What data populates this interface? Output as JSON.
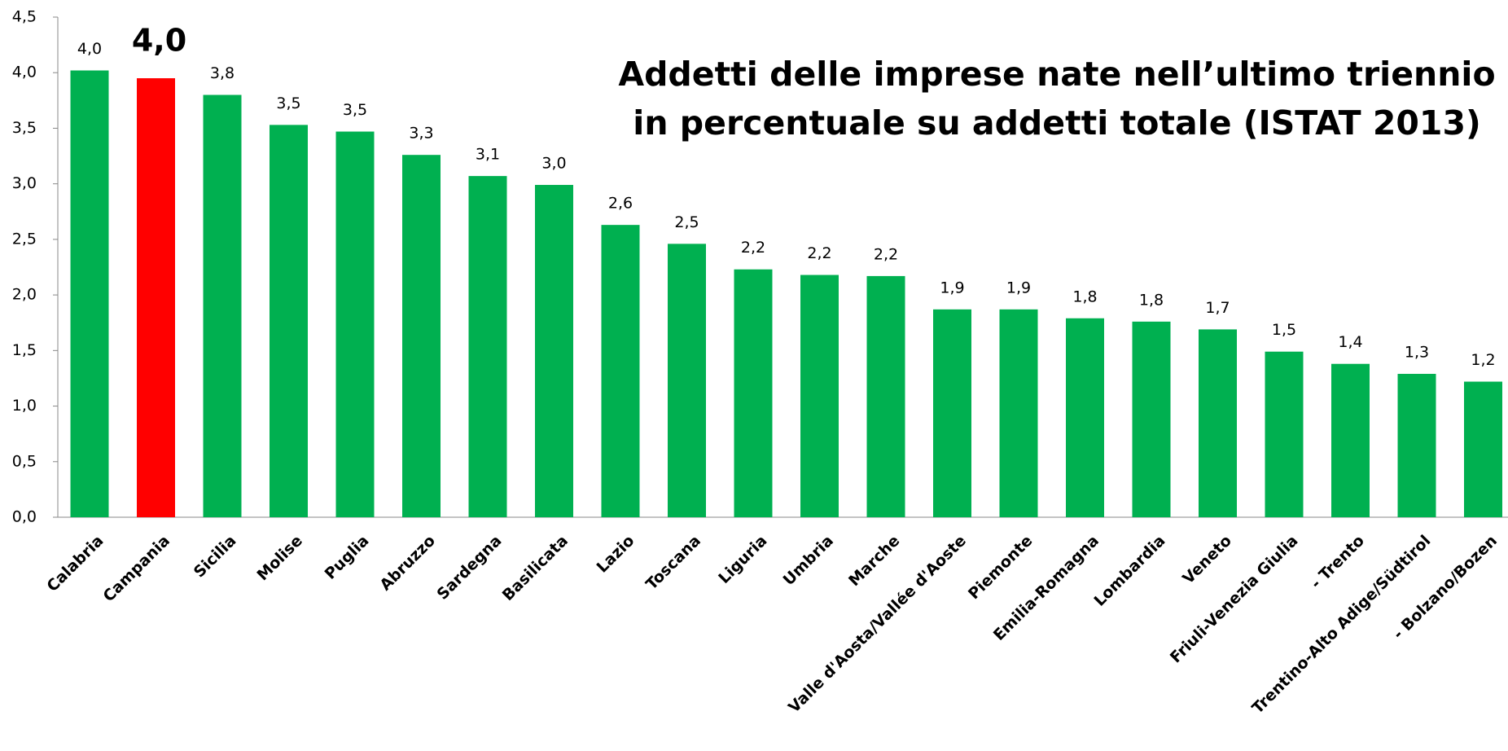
{
  "chart_data": {
    "type": "bar",
    "title": [
      "Addetti delle imprese nate nell’ultimo triennio",
      "in percentuale su addetti totale (ISTAT 2013)"
    ],
    "categories": [
      "Calabria",
      "Campania",
      "Sicilia",
      "Molise",
      "Puglia",
      "Abruzzo",
      "Sardegna",
      "Basilicata",
      "Lazio",
      "Toscana",
      "Liguria",
      "Umbria",
      "Marche",
      "Valle d'Aosta/Vallée d'Aoste",
      "Piemonte",
      "Emilia-Romagna",
      "Lombardia",
      "Veneto",
      "Friuli-Venezia Giulia",
      "- Trento",
      "Trentino-Alto Adige/Südtirol",
      "- Bolzano/Bozen"
    ],
    "values": [
      4.02,
      3.95,
      3.8,
      3.53,
      3.47,
      3.26,
      3.07,
      2.99,
      2.63,
      2.46,
      2.23,
      2.18,
      2.17,
      1.87,
      1.87,
      1.79,
      1.76,
      1.69,
      1.49,
      1.38,
      1.29,
      1.22
    ],
    "value_labels": [
      "4,0",
      "4,0",
      "3,8",
      "3,5",
      "3,5",
      "3,3",
      "3,1",
      "3,0",
      "2,6",
      "2,5",
      "2,2",
      "2,2",
      "2,2",
      "1,9",
      "1,9",
      "1,8",
      "1,8",
      "1,7",
      "1,5",
      "1,4",
      "1,3",
      "1,2"
    ],
    "color": "#00b050",
    "colors": [
      "#00b050",
      "#ff0000",
      "#00b050",
      "#00b050",
      "#00b050",
      "#00b050",
      "#00b050",
      "#00b050",
      "#00b050",
      "#00b050",
      "#00b050",
      "#00b050",
      "#00b050",
      "#00b050",
      "#00b050",
      "#00b050",
      "#00b050",
      "#00b050",
      "#00b050",
      "#00b050",
      "#00b050",
      "#00b050"
    ],
    "title_color": "#ff0000",
    "ylim": [
      0,
      4.5
    ],
    "yticks": [
      {
        "value": 0,
        "label": "0,0"
      },
      {
        "value": 0.5,
        "label": "0,5"
      },
      {
        "value": 1,
        "label": "1,0"
      },
      {
        "value": 1.5,
        "label": "1,5"
      },
      {
        "value": 2,
        "label": "2,0"
      },
      {
        "value": 2.5,
        "label": "2,5"
      },
      {
        "value": 3,
        "label": "3,0"
      },
      {
        "value": 3.5,
        "label": "3,5"
      },
      {
        "value": 4,
        "label": "4,0"
      },
      {
        "value": 4.5,
        "label": "4,5"
      }
    ],
    "grid": false
  }
}
